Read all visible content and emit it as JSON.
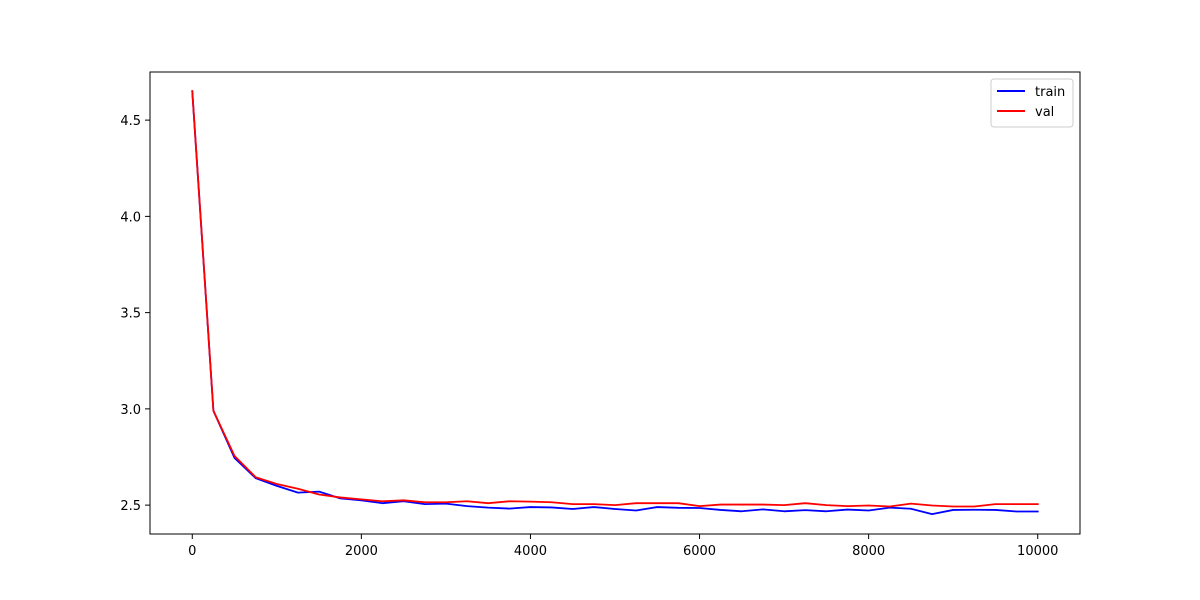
{
  "chart_data": {
    "type": "line",
    "title": "",
    "xlabel": "",
    "ylabel": "",
    "xlim": [
      -500,
      10500
    ],
    "ylim": [
      2.35,
      4.75
    ],
    "x_ticks": [
      0,
      2000,
      4000,
      6000,
      8000,
      10000
    ],
    "x_tick_labels": [
      "0",
      "2000",
      "4000",
      "6000",
      "8000",
      "10000"
    ],
    "y_ticks": [
      2.5,
      3.0,
      3.5,
      4.0,
      4.5
    ],
    "y_tick_labels": [
      "2.5",
      "3.0",
      "3.5",
      "4.0",
      "4.5"
    ],
    "grid": false,
    "legend_position": "upper right",
    "x": [
      0,
      250,
      500,
      750,
      1000,
      1250,
      1500,
      1750,
      2000,
      2250,
      2500,
      2750,
      3000,
      3250,
      3500,
      3750,
      4000,
      4250,
      4500,
      4750,
      5000,
      5250,
      5500,
      5750,
      6000,
      6250,
      6500,
      6750,
      7000,
      7250,
      7500,
      7750,
      8000,
      8250,
      8500,
      8750,
      9000,
      9250,
      9500,
      9750,
      10000
    ],
    "series": [
      {
        "name": "train",
        "color": "#0000ff",
        "values": [
          4.65,
          2.99,
          2.745,
          2.64,
          2.6,
          2.565,
          2.57,
          2.535,
          2.525,
          2.51,
          2.52,
          2.505,
          2.508,
          2.495,
          2.487,
          2.482,
          2.49,
          2.488,
          2.48,
          2.49,
          2.48,
          2.472,
          2.49,
          2.486,
          2.485,
          2.475,
          2.468,
          2.478,
          2.468,
          2.474,
          2.468,
          2.477,
          2.472,
          2.487,
          2.481,
          2.453,
          2.475,
          2.476,
          2.475,
          2.467,
          2.467
        ]
      },
      {
        "name": "val",
        "color": "#ff0000",
        "values": [
          4.65,
          2.99,
          2.755,
          2.645,
          2.61,
          2.585,
          2.555,
          2.54,
          2.53,
          2.52,
          2.525,
          2.515,
          2.515,
          2.52,
          2.51,
          2.52,
          2.518,
          2.515,
          2.505,
          2.505,
          2.5,
          2.51,
          2.51,
          2.51,
          2.495,
          2.503,
          2.503,
          2.503,
          2.5,
          2.51,
          2.5,
          2.495,
          2.498,
          2.493,
          2.508,
          2.498,
          2.493,
          2.493,
          2.505,
          2.505,
          2.505
        ]
      }
    ]
  }
}
